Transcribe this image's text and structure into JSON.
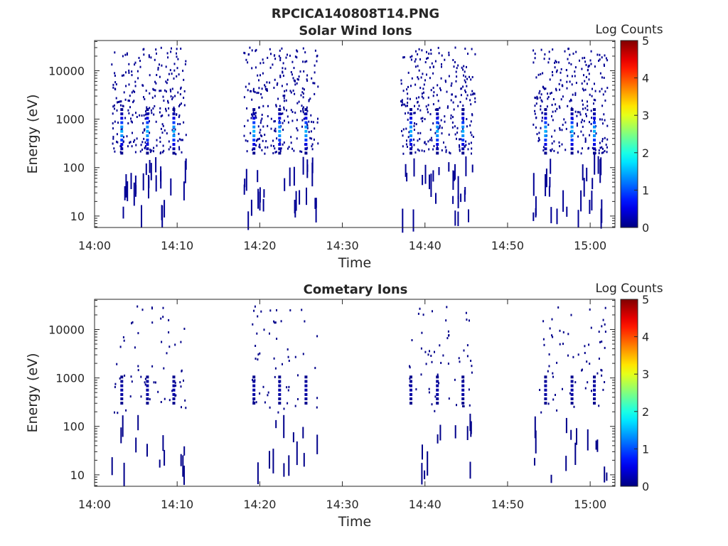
{
  "figure_title": "RPCICA140808T14.PNG",
  "chart_data": [
    {
      "type": "heatmap",
      "title": "Solar Wind Ions",
      "xlabel": "Time",
      "ylabel": "Energy (eV)",
      "x_start": "14:00",
      "x_end": "15:03",
      "xticks": [
        "14:00",
        "14:10",
        "14:20",
        "14:30",
        "14:40",
        "14:50",
        "15:00"
      ],
      "ylim": [
        5.8,
        42000
      ],
      "yscale": "log",
      "yticks": [
        "10",
        "100",
        "1000",
        "10000"
      ],
      "colorbar": {
        "label": "Log Counts",
        "range": [
          0,
          5
        ],
        "ticks": [
          "0",
          "1",
          "2",
          "3",
          "4",
          "5"
        ],
        "colormap": "jet"
      },
      "sweeps": [
        {
          "start": "14:02",
          "end": "14:11",
          "peaks": [
            "14:03.3",
            "14:06.4",
            "14:09.6"
          ],
          "peak_energy": 600,
          "peak_log_counts": 1.5
        },
        {
          "start": "14:18",
          "end": "14:27",
          "peaks": [
            "14:19.3",
            "14:22.4",
            "14:25.6"
          ],
          "peak_energy": 600,
          "peak_log_counts": 1.5
        },
        {
          "start": "14:37",
          "end": "14:46",
          "peaks": [
            "14:38.3",
            "14:41.5",
            "14:44.6"
          ],
          "peak_energy": 600,
          "peak_log_counts": 1.5
        },
        {
          "start": "14:53",
          "end": "15:02",
          "peaks": [
            "14:54.6",
            "14:57.8",
            "15:00.5"
          ],
          "peak_energy": 600,
          "peak_log_counts": 1.5
        }
      ],
      "background_log_counts": 0.1
    },
    {
      "type": "heatmap",
      "title": "Cometary Ions",
      "xlabel": "Time",
      "ylabel": "Energy (eV)",
      "x_start": "14:00",
      "x_end": "15:03",
      "xticks": [
        "14:00",
        "14:10",
        "14:20",
        "14:30",
        "14:40",
        "14:50",
        "15:00"
      ],
      "ylim": [
        5.8,
        42000
      ],
      "yscale": "log",
      "yticks": [
        "10",
        "100",
        "1000",
        "10000"
      ],
      "colorbar": {
        "label": "Log Counts",
        "range": [
          0,
          5
        ],
        "ticks": [
          "0",
          "1",
          "2",
          "3",
          "4",
          "5"
        ],
        "colormap": "jet"
      },
      "sweeps": [
        {
          "start": "14:02",
          "end": "14:11",
          "peaks": [
            "14:03.3",
            "14:06.4",
            "14:09.6"
          ],
          "peak_energy": 600,
          "peak_log_counts": 0.2
        },
        {
          "start": "14:19",
          "end": "14:27",
          "peaks": [
            "14:19.3",
            "14:22.4",
            "14:25.6"
          ],
          "peak_energy": 600,
          "peak_log_counts": 0.2
        },
        {
          "start": "14:38",
          "end": "14:46",
          "peaks": [
            "14:38.3",
            "14:41.5",
            "14:44.6"
          ],
          "peak_energy": 600,
          "peak_log_counts": 0.2
        },
        {
          "start": "14:53",
          "end": "15:02",
          "peaks": [
            "14:54.6",
            "14:57.8",
            "15:00.5"
          ],
          "peak_energy": 600,
          "peak_log_counts": 0.2
        }
      ],
      "background_log_counts": 0.05
    }
  ]
}
